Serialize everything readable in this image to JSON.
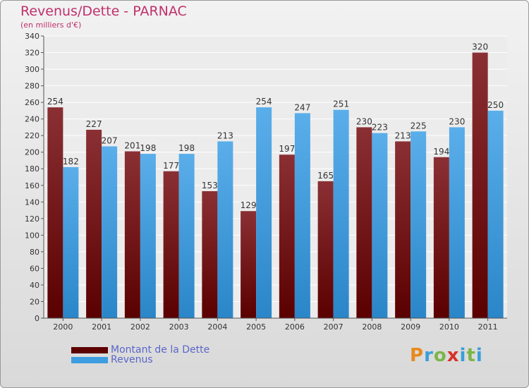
{
  "header": {
    "title": "Revenus/Dette - PARNAC",
    "subtitle": "(en milliers d'€)"
  },
  "chart_data": {
    "type": "bar",
    "categories": [
      "2000",
      "2001",
      "2002",
      "2003",
      "2004",
      "2005",
      "2006",
      "2007",
      "2008",
      "2009",
      "2010",
      "2011"
    ],
    "series": [
      {
        "name": "Montant de la Dette",
        "values": [
          254,
          227,
          201,
          177,
          153,
          129,
          197,
          165,
          230,
          213,
          194,
          320
        ],
        "color": "#7a1e22"
      },
      {
        "name": "Revenus",
        "values": [
          182,
          207,
          198,
          198,
          213,
          254,
          247,
          251,
          223,
          225,
          230,
          250
        ],
        "color": "#3d9de0"
      }
    ],
    "ylim": [
      0,
      340
    ],
    "yticks": [
      0,
      20,
      40,
      60,
      80,
      100,
      120,
      140,
      160,
      180,
      200,
      220,
      240,
      260,
      280,
      300,
      320,
      340
    ],
    "grid": true,
    "legend_position": "bottom-left"
  },
  "legend": [
    {
      "label": "Montant de la Dette",
      "color": "#5c0000"
    },
    {
      "label": "Revenus",
      "color": "#3d9de0"
    }
  ],
  "logo": {
    "text": "Proxiti"
  }
}
